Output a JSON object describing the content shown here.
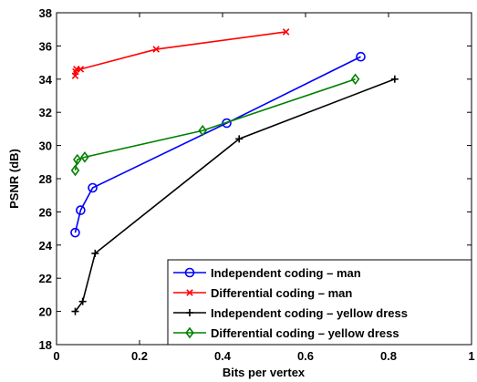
{
  "chart_data": {
    "type": "line",
    "title": "",
    "xlabel": "Bits per vertex",
    "ylabel": "PSNR (dB)",
    "xlim": [
      0,
      1
    ],
    "ylim": [
      18,
      38
    ],
    "xticks": [
      0,
      0.2,
      0.4,
      0.6,
      0.8,
      1
    ],
    "xtick_labels": [
      "0",
      "0.2",
      "0.4",
      "0.6",
      "0.8",
      "1"
    ],
    "yticks": [
      18,
      20,
      22,
      24,
      26,
      28,
      30,
      32,
      34,
      36,
      38
    ],
    "ytick_labels": [
      "18",
      "20",
      "22",
      "24",
      "26",
      "28",
      "30",
      "32",
      "34",
      "36",
      "38"
    ],
    "grid": false,
    "legend_position": "bottom-right",
    "series": [
      {
        "name": "Independent coding – man",
        "color": "#0000ff",
        "marker": "circle",
        "x": [
          0.045,
          0.058,
          0.087,
          0.41,
          0.733
        ],
        "y": [
          24.75,
          26.1,
          27.45,
          31.35,
          35.35
        ]
      },
      {
        "name": "Differential coding – man",
        "color": "#ff0000",
        "marker": "x",
        "x": [
          0.045,
          0.046,
          0.048,
          0.058,
          0.24,
          0.553
        ],
        "y": [
          34.2,
          34.45,
          34.6,
          34.6,
          35.8,
          36.85
        ]
      },
      {
        "name": "Independent coding – yellow dress",
        "color": "#000000",
        "marker": "plus",
        "x": [
          0.045,
          0.063,
          0.093,
          0.44,
          0.815
        ],
        "y": [
          20.0,
          20.6,
          23.5,
          30.4,
          34.0
        ]
      },
      {
        "name": "Differential coding – yellow dress",
        "color": "#008000",
        "marker": "diamond",
        "x": [
          0.045,
          0.05,
          0.068,
          0.352,
          0.72
        ],
        "y": [
          28.5,
          29.15,
          29.3,
          30.9,
          34.0
        ]
      }
    ]
  }
}
